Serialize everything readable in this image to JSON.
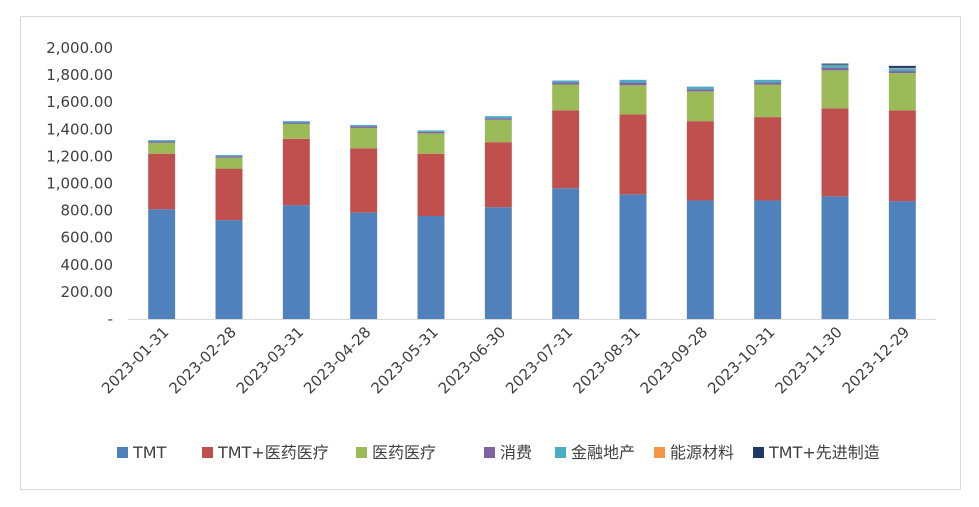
{
  "chart_data": {
    "type": "bar",
    "stacked": true,
    "title": "",
    "xlabel": "",
    "ylabel": "",
    "ylim": [
      0,
      2000
    ],
    "yticks": [
      {
        "value": 0,
        "label": "-"
      },
      {
        "value": 200,
        "label": "200.00"
      },
      {
        "value": 400,
        "label": "400.00"
      },
      {
        "value": 600,
        "label": "600.00"
      },
      {
        "value": 800,
        "label": "800.00"
      },
      {
        "value": 1000,
        "label": "1,000.00"
      },
      {
        "value": 1200,
        "label": "1,200.00"
      },
      {
        "value": 1400,
        "label": "1,400.00"
      },
      {
        "value": 1600,
        "label": "1,600.00"
      },
      {
        "value": 1800,
        "label": "1,800.00"
      },
      {
        "value": 2000,
        "label": "2,000.00"
      }
    ],
    "grid": false,
    "legend_position": "bottom",
    "categories": [
      "2023-01-31",
      "2023-02-28",
      "2023-03-31",
      "2023-04-28",
      "2023-05-31",
      "2023-06-30",
      "2023-07-31",
      "2023-08-31",
      "2023-09-28",
      "2023-10-31",
      "2023-11-30",
      "2023-12-29"
    ],
    "series": [
      {
        "name": "TMT",
        "color": "#4f81bd",
        "values": [
          810,
          730,
          840,
          785,
          760,
          825,
          965,
          920,
          875,
          875,
          905,
          870
        ]
      },
      {
        "name": "TMT+医药医疗",
        "color": "#c0504d",
        "values": [
          410,
          380,
          490,
          475,
          460,
          480,
          575,
          590,
          585,
          615,
          650,
          670
        ]
      },
      {
        "name": "医药医疗",
        "color": "#9bbb59",
        "values": [
          80,
          80,
          110,
          150,
          150,
          165,
          190,
          215,
          220,
          240,
          280,
          275
        ]
      },
      {
        "name": "消费",
        "color": "#8064a2",
        "values": [
          10,
          10,
          10,
          12,
          12,
          12,
          15,
          20,
          15,
          15,
          20,
          15
        ]
      },
      {
        "name": "金融地产",
        "color": "#4bacc6",
        "values": [
          10,
          10,
          10,
          10,
          10,
          15,
          15,
          20,
          20,
          20,
          20,
          20
        ]
      },
      {
        "name": "能源材料",
        "color": "#f79646",
        "values": [
          0,
          0,
          0,
          0,
          0,
          0,
          0,
          0,
          0,
          0,
          2,
          3
        ]
      },
      {
        "name": "TMT+先进制造",
        "color": "#1f3864",
        "values": [
          0,
          0,
          0,
          0,
          0,
          0,
          0,
          0,
          0,
          0,
          8,
          15
        ]
      }
    ]
  }
}
